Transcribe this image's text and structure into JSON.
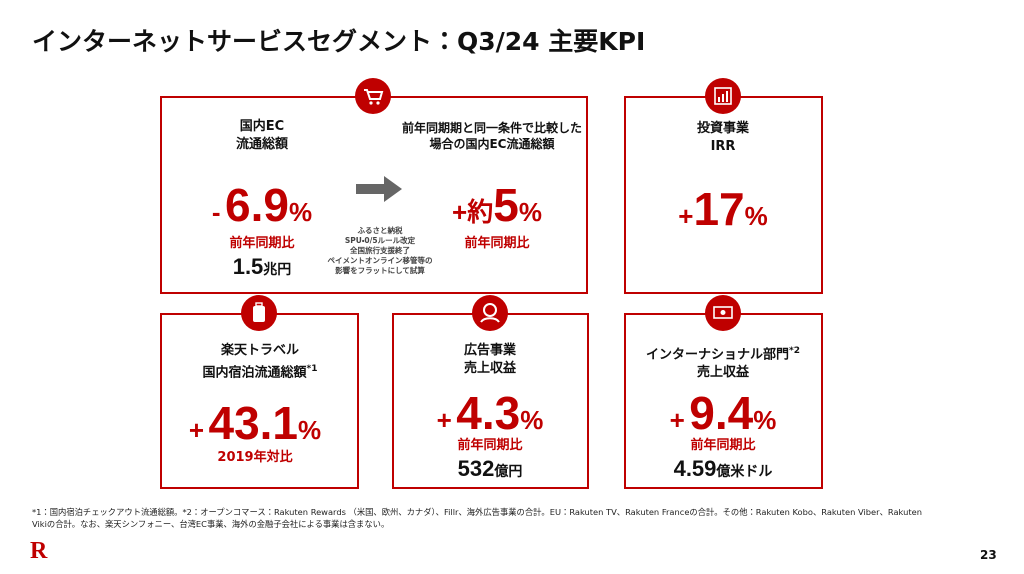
{
  "header": {
    "title": "インターネットサービスセグメント：Q3/24 主要KPI"
  },
  "cards": {
    "ec": {
      "label_lines": [
        "国内EC",
        "流通総額"
      ],
      "sign": "-",
      "value": "6.9",
      "unit": "%",
      "basis": "前年同期比",
      "amount": "1.5",
      "amount_unit": "兆円"
    },
    "ec_adjusted": {
      "label_lines": [
        "前年同期期と同一条件で比較した",
        "場合の国内EC流通総額"
      ],
      "sign": "+",
      "prefix": "約",
      "value": "5",
      "unit": "%",
      "basis": "前年同期比"
    },
    "ec_note_lines": [
      "ふるさと納税",
      "SPU・0/5ルール改定",
      "全国旅行支援終了",
      "ペイメントオンライン移管等の",
      "影響をフラットにして試算"
    ],
    "investment": {
      "label_lines": [
        "投資事業",
        "IRR"
      ],
      "sign": "+",
      "value": "17",
      "unit": "%"
    },
    "travel": {
      "label_lines": [
        "楽天トラベル",
        "国内宿泊流通総額"
      ],
      "label_sup": "*1",
      "sign": "+",
      "value": "43.1",
      "unit": "%",
      "basis": "2019年対比"
    },
    "ads": {
      "label_lines": [
        "広告事業",
        "売上収益"
      ],
      "sign": "+",
      "value": "4.3",
      "unit": "%",
      "basis": "前年同期比",
      "amount": "532",
      "amount_unit": "億円"
    },
    "international": {
      "label_lines": [
        "インターナショナル部門",
        "売上収益"
      ],
      "label_sup": "*2",
      "sign": "+",
      "value": "9.4",
      "unit": "%",
      "basis": "前年同期比",
      "amount": "4.59",
      "amount_unit": "億米ドル"
    }
  },
  "footer": {
    "footnote_lines": [
      "*1：国内宿泊チェックアウト流通総額。*2：オープンコマース：Rakuten Rewards （米国、欧州、カナダ）、Fillr、海外広告事業の合計。EU：Rakuten TV、Rakuten Franceの合計。その他：Rakuten Kobo、Rakuten Viber、Rakuten",
      "Vikiの合計。なお、楽天シンフォニー、台湾EC事業、海外の金融子会社による事業は含まない。"
    ],
    "logo": "R",
    "page_number": "23"
  }
}
